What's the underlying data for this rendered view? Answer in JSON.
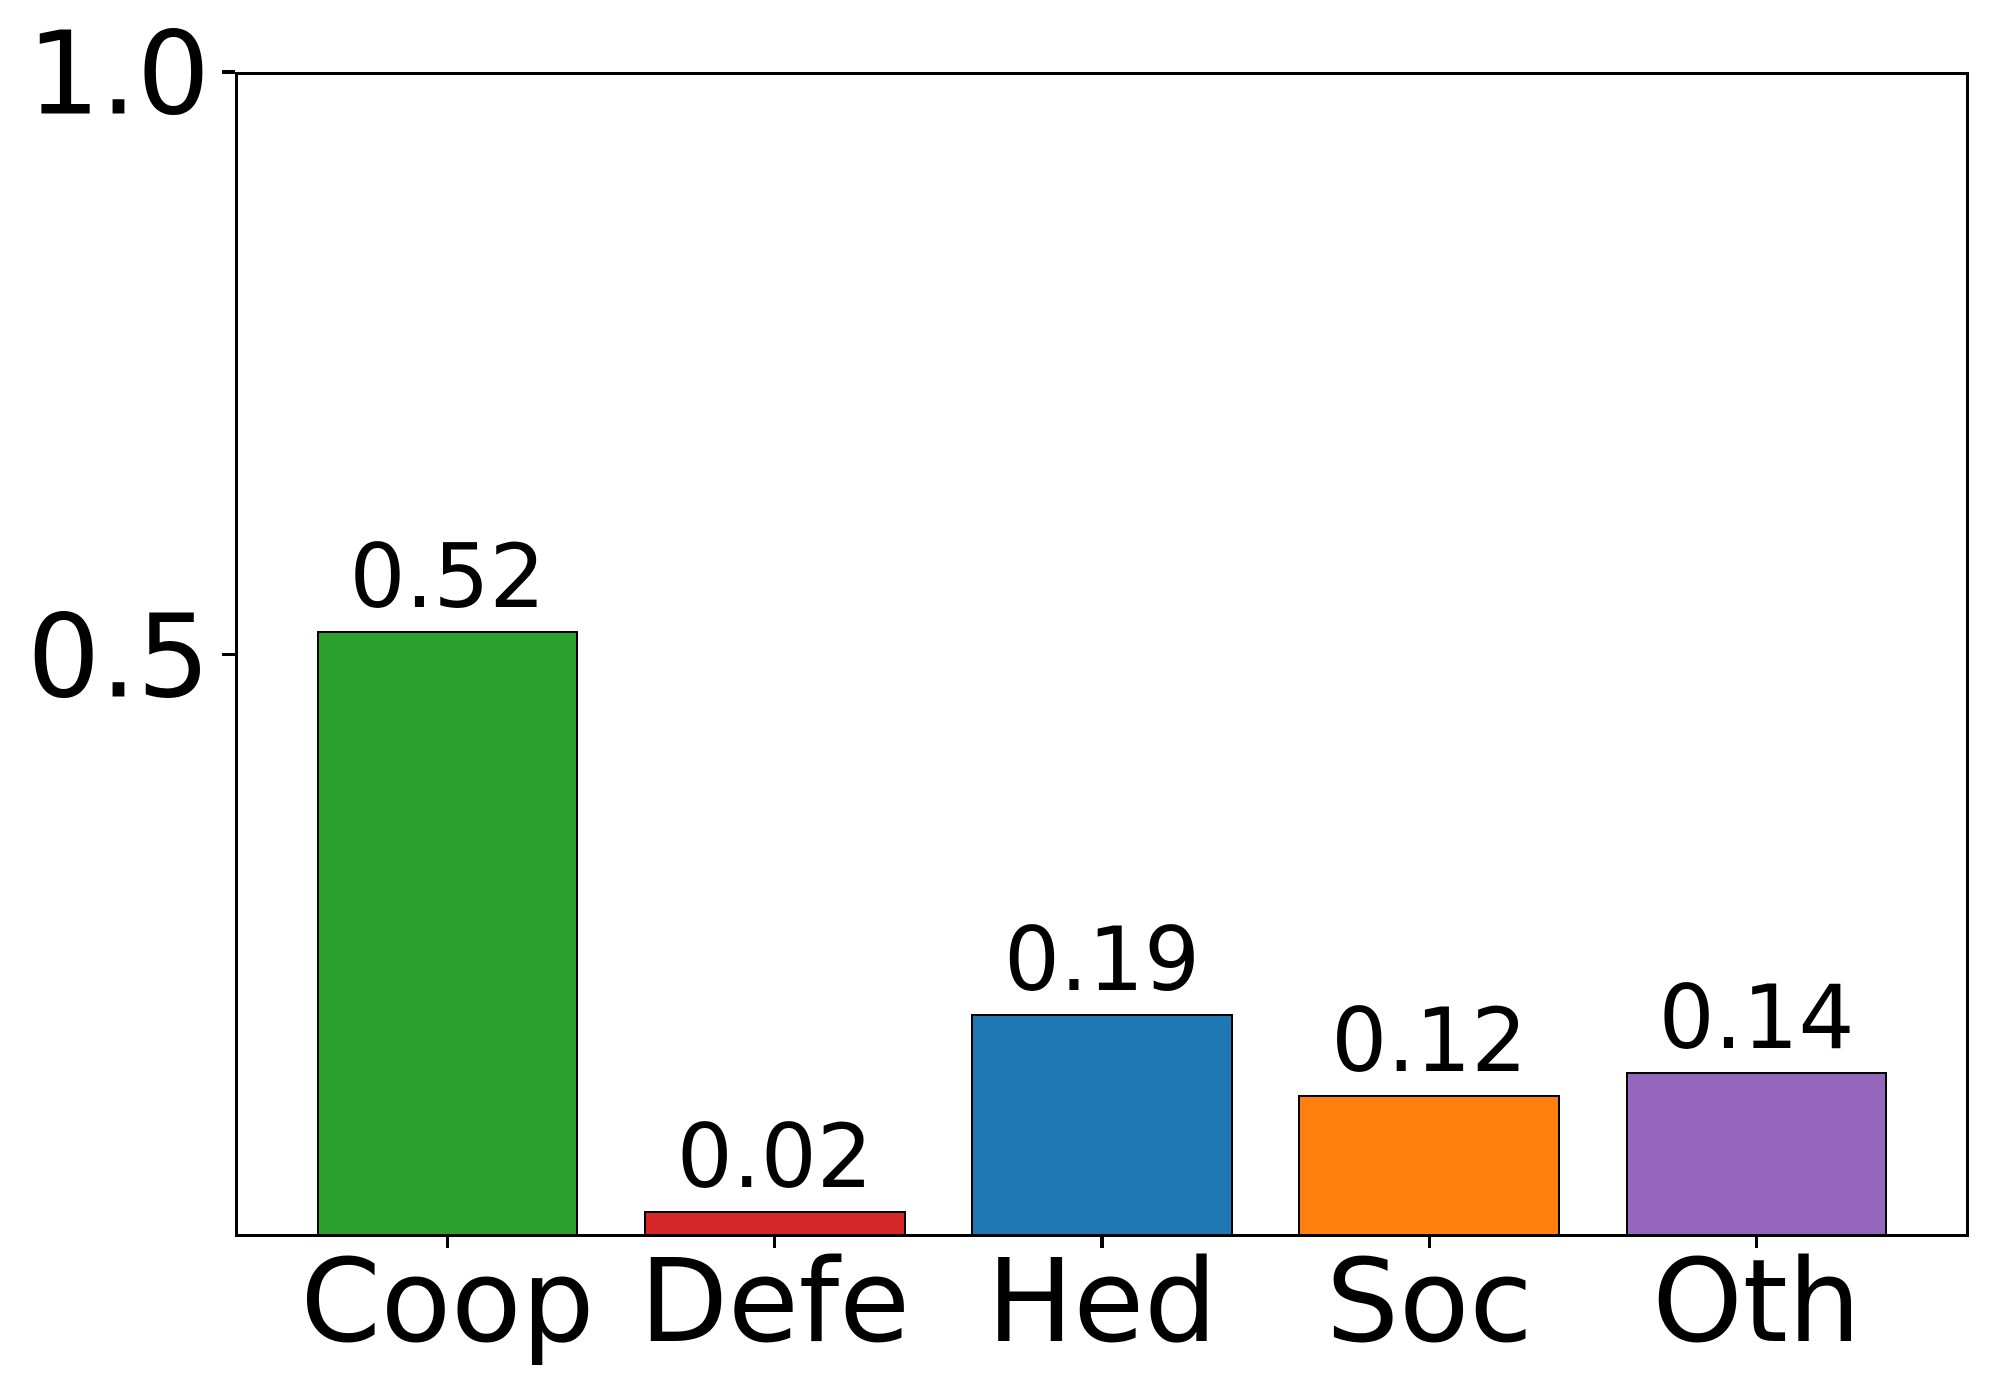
{
  "figure": {
    "background": "#ffffff",
    "text_color": "#000000"
  },
  "chart_data": {
    "type": "bar",
    "title": "",
    "xlabel": "",
    "ylabel": "",
    "categories": [
      "Coop",
      "Defe",
      "Hed",
      "Soc",
      "Oth"
    ],
    "values": [
      0.52,
      0.02,
      0.19,
      0.12,
      0.14
    ],
    "value_labels": [
      "0.52",
      "0.02",
      "0.19",
      "0.12",
      "0.14"
    ],
    "bar_colors": [
      "#2ca02c",
      "#d62728",
      "#1f77b4",
      "#ff7f0e",
      "#9467bd"
    ],
    "bar_edge_color": "#000000",
    "bar_width_fraction": 0.8,
    "ylim": [
      0,
      1.0
    ],
    "yticks": [
      {
        "value": 1.0,
        "label": "1.0"
      },
      {
        "value": 0.5,
        "label": "0.5"
      }
    ],
    "grid": false,
    "legend": null
  }
}
